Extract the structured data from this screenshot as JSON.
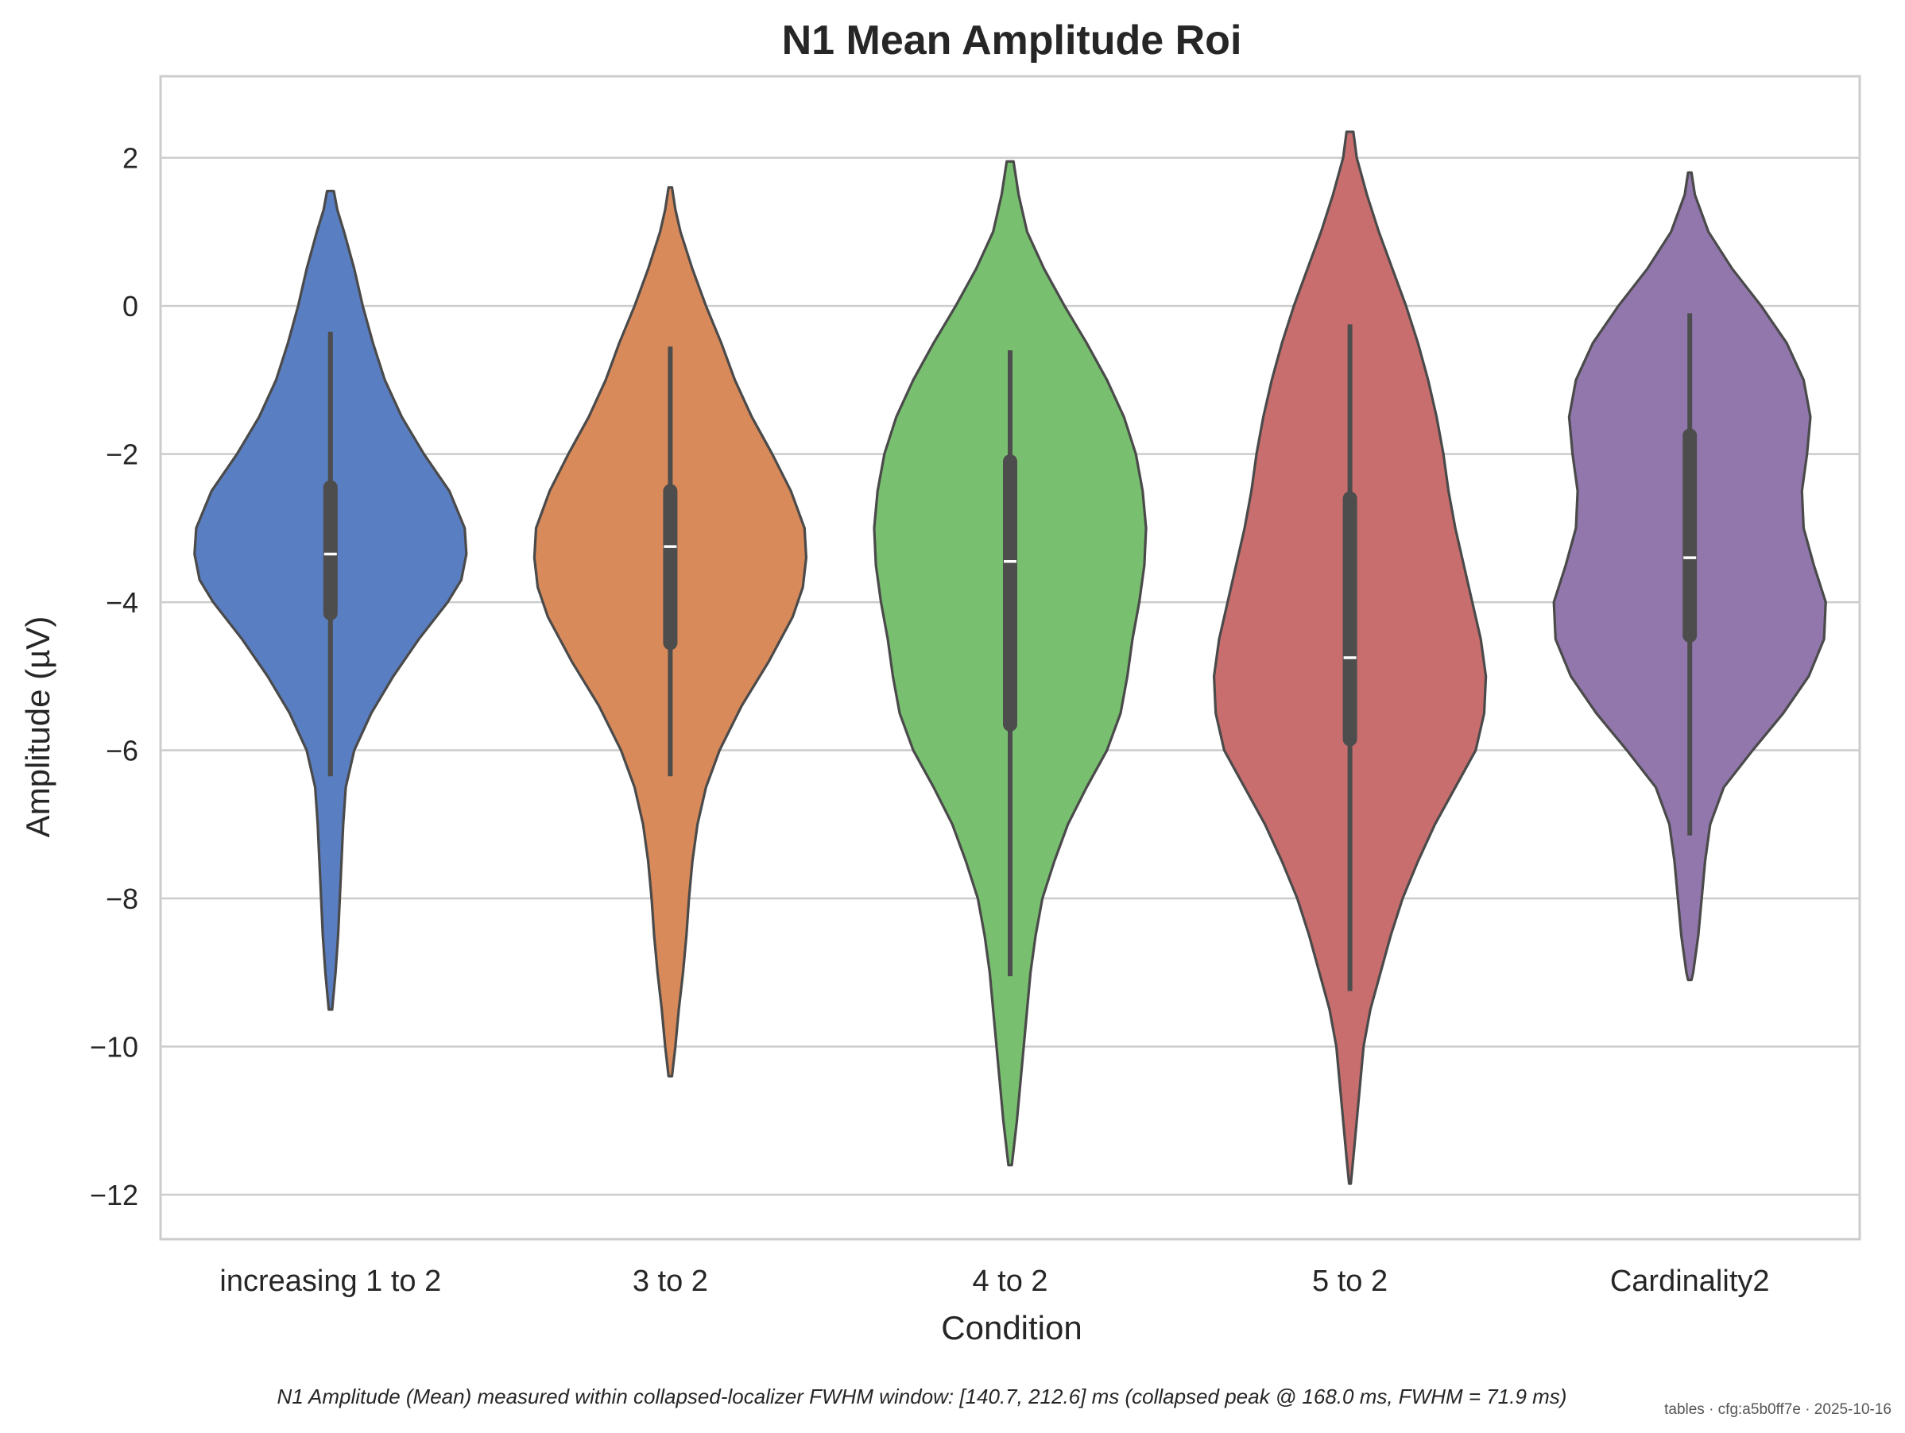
{
  "chart_data": {
    "type": "violin",
    "title": "N1 Mean Amplitude Roi",
    "xlabel": "Condition",
    "ylabel": "Amplitude (µV)",
    "ylim": [
      -12.6,
      3.1
    ],
    "yticks": [
      2,
      0,
      -2,
      -4,
      -6,
      -8,
      -10,
      -12
    ],
    "ytick_labels": [
      "2",
      "0",
      "−2",
      "−4",
      "−6",
      "−8",
      "−10",
      "−12"
    ],
    "grid": "horizontal",
    "categories": [
      "increasing 1 to 2",
      "3 to 2",
      "4 to 2",
      "5 to 2",
      "Cardinality2"
    ],
    "series": [
      {
        "color": "#5a7ec2",
        "median": -3.35,
        "q1": -4.15,
        "q3": -2.45,
        "whisker_low": -6.35,
        "whisker_high": -0.35,
        "profile": [
          [
            1.55,
            0.02
          ],
          [
            1.3,
            0.04
          ],
          [
            1.0,
            0.08
          ],
          [
            0.5,
            0.14
          ],
          [
            0.0,
            0.19
          ],
          [
            -0.5,
            0.25
          ],
          [
            -1.0,
            0.32
          ],
          [
            -1.5,
            0.42
          ],
          [
            -2.0,
            0.55
          ],
          [
            -2.5,
            0.7
          ],
          [
            -3.0,
            0.79
          ],
          [
            -3.35,
            0.8
          ],
          [
            -3.7,
            0.77
          ],
          [
            -4.0,
            0.69
          ],
          [
            -4.5,
            0.52
          ],
          [
            -5.0,
            0.37
          ],
          [
            -5.5,
            0.24
          ],
          [
            -6.0,
            0.14
          ],
          [
            -6.5,
            0.09
          ],
          [
            -7.0,
            0.075
          ],
          [
            -7.5,
            0.065
          ],
          [
            -8.0,
            0.055
          ],
          [
            -8.5,
            0.045
          ],
          [
            -9.0,
            0.03
          ],
          [
            -9.5,
            0.01
          ]
        ]
      },
      {
        "color": "#d98a5a",
        "median": -3.25,
        "q1": -4.55,
        "q3": -2.5,
        "whisker_low": -6.35,
        "whisker_high": -0.55,
        "profile": [
          [
            1.6,
            0.01
          ],
          [
            1.3,
            0.03
          ],
          [
            1.0,
            0.06
          ],
          [
            0.5,
            0.13
          ],
          [
            0.0,
            0.21
          ],
          [
            -0.5,
            0.3
          ],
          [
            -1.0,
            0.38
          ],
          [
            -1.5,
            0.48
          ],
          [
            -2.0,
            0.6
          ],
          [
            -2.5,
            0.71
          ],
          [
            -3.0,
            0.79
          ],
          [
            -3.4,
            0.8
          ],
          [
            -3.8,
            0.78
          ],
          [
            -4.2,
            0.72
          ],
          [
            -4.8,
            0.58
          ],
          [
            -5.4,
            0.42
          ],
          [
            -6.0,
            0.29
          ],
          [
            -6.5,
            0.21
          ],
          [
            -7.0,
            0.16
          ],
          [
            -7.5,
            0.13
          ],
          [
            -8.0,
            0.11
          ],
          [
            -8.5,
            0.095
          ],
          [
            -9.0,
            0.075
          ],
          [
            -9.5,
            0.05
          ],
          [
            -10.0,
            0.03
          ],
          [
            -10.4,
            0.01
          ]
        ]
      },
      {
        "color": "#78c06f",
        "median": -3.45,
        "q1": -5.65,
        "q3": -2.1,
        "whisker_low": -9.05,
        "whisker_high": -0.6,
        "profile": [
          [
            1.95,
            0.02
          ],
          [
            1.5,
            0.05
          ],
          [
            1.0,
            0.1
          ],
          [
            0.5,
            0.2
          ],
          [
            0.0,
            0.32
          ],
          [
            -0.5,
            0.45
          ],
          [
            -1.0,
            0.57
          ],
          [
            -1.5,
            0.67
          ],
          [
            -2.0,
            0.74
          ],
          [
            -2.5,
            0.78
          ],
          [
            -3.0,
            0.8
          ],
          [
            -3.5,
            0.79
          ],
          [
            -4.0,
            0.76
          ],
          [
            -4.5,
            0.72
          ],
          [
            -5.0,
            0.69
          ],
          [
            -5.5,
            0.65
          ],
          [
            -6.0,
            0.57
          ],
          [
            -6.5,
            0.45
          ],
          [
            -7.0,
            0.34
          ],
          [
            -7.5,
            0.26
          ],
          [
            -8.0,
            0.19
          ],
          [
            -8.5,
            0.15
          ],
          [
            -9.0,
            0.12
          ],
          [
            -9.5,
            0.1
          ],
          [
            -10.0,
            0.08
          ],
          [
            -10.5,
            0.06
          ],
          [
            -11.0,
            0.04
          ],
          [
            -11.6,
            0.01
          ]
        ]
      },
      {
        "color": "#c96e6e",
        "median": -4.75,
        "q1": -5.85,
        "q3": -2.6,
        "whisker_low": -9.25,
        "whisker_high": -0.25,
        "profile": [
          [
            2.35,
            0.02
          ],
          [
            2.0,
            0.04
          ],
          [
            1.5,
            0.1
          ],
          [
            1.0,
            0.17
          ],
          [
            0.5,
            0.25
          ],
          [
            0.0,
            0.33
          ],
          [
            -0.5,
            0.4
          ],
          [
            -1.0,
            0.46
          ],
          [
            -1.5,
            0.51
          ],
          [
            -2.0,
            0.55
          ],
          [
            -2.5,
            0.58
          ],
          [
            -3.0,
            0.62
          ],
          [
            -3.5,
            0.67
          ],
          [
            -4.0,
            0.72
          ],
          [
            -4.5,
            0.77
          ],
          [
            -5.0,
            0.8
          ],
          [
            -5.5,
            0.79
          ],
          [
            -6.0,
            0.74
          ],
          [
            -6.5,
            0.62
          ],
          [
            -7.0,
            0.5
          ],
          [
            -7.5,
            0.4
          ],
          [
            -8.0,
            0.31
          ],
          [
            -8.5,
            0.24
          ],
          [
            -9.0,
            0.18
          ],
          [
            -9.5,
            0.12
          ],
          [
            -10.0,
            0.08
          ],
          [
            -10.5,
            0.06
          ],
          [
            -11.0,
            0.04
          ],
          [
            -11.5,
            0.02
          ],
          [
            -11.85,
            0.005
          ]
        ]
      },
      {
        "color": "#9277ad",
        "median": -3.4,
        "q1": -4.45,
        "q3": -1.75,
        "whisker_low": -7.15,
        "whisker_high": -0.1,
        "profile": [
          [
            1.8,
            0.01
          ],
          [
            1.5,
            0.03
          ],
          [
            1.0,
            0.11
          ],
          [
            0.5,
            0.25
          ],
          [
            0.0,
            0.42
          ],
          [
            -0.5,
            0.57
          ],
          [
            -1.0,
            0.67
          ],
          [
            -1.5,
            0.71
          ],
          [
            -2.0,
            0.69
          ],
          [
            -2.5,
            0.66
          ],
          [
            -3.0,
            0.67
          ],
          [
            -3.5,
            0.73
          ],
          [
            -4.0,
            0.8
          ],
          [
            -4.5,
            0.79
          ],
          [
            -5.0,
            0.7
          ],
          [
            -5.5,
            0.55
          ],
          [
            -6.0,
            0.37
          ],
          [
            -6.5,
            0.2
          ],
          [
            -7.0,
            0.12
          ],
          [
            -7.5,
            0.09
          ],
          [
            -8.0,
            0.07
          ],
          [
            -8.5,
            0.05
          ],
          [
            -9.0,
            0.02
          ],
          [
            -9.1,
            0.01
          ]
        ]
      }
    ],
    "annotation": "N1 Amplitude (Mean) measured within collapsed-localizer FWHM window: [140.7, 212.6] ms (collapsed peak @ 168.0 ms, FWHM = 71.9 ms)",
    "footer": "tables · cfg:a5b0ff7e · 2025-10-16"
  }
}
